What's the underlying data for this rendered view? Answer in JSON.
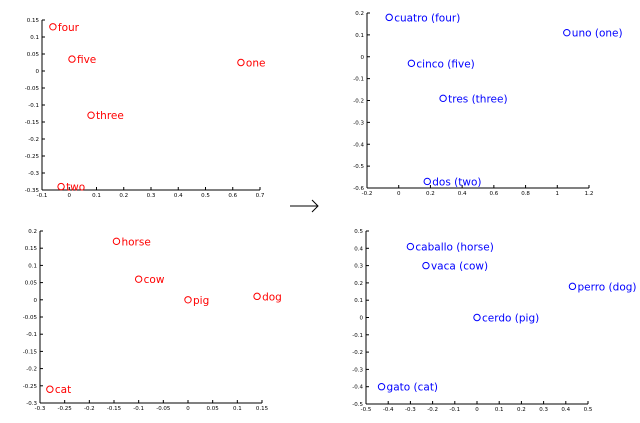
{
  "chart_data": [
    {
      "type": "scatter",
      "color": "#ff0000",
      "xlim": [
        -0.1,
        0.7
      ],
      "ylim": [
        -0.35,
        0.15
      ],
      "xticks": [
        -0.1,
        0,
        0.1,
        0.2,
        0.3,
        0.4,
        0.5,
        0.6,
        0.7
      ],
      "yticks": [
        -0.35,
        -0.3,
        -0.25,
        -0.2,
        -0.15,
        -0.1,
        -0.05,
        0,
        0.05,
        0.1,
        0.15
      ],
      "xtick_labels": [
        "-0.1",
        "0",
        "0.1",
        "0.2",
        "0.3",
        "0.4",
        "0.5",
        "0.6",
        "0.7"
      ],
      "ytick_labels": [
        "-0.35",
        "-0.3",
        "-0.25",
        "-0.2",
        "-0.15",
        "-0.1",
        "-0.05",
        "0",
        "0.05",
        "0.1",
        "0.15"
      ],
      "points": [
        {
          "label": "four",
          "x": -0.06,
          "y": 0.13
        },
        {
          "label": "five",
          "x": 0.01,
          "y": 0.035
        },
        {
          "label": "one",
          "x": 0.63,
          "y": 0.025
        },
        {
          "label": "three",
          "x": 0.08,
          "y": -0.13
        },
        {
          "label": "two",
          "x": -0.03,
          "y": -0.34
        }
      ]
    },
    {
      "type": "scatter",
      "color": "#0000ff",
      "xlim": [
        -0.2,
        1.2
      ],
      "ylim": [
        -0.6,
        0.2
      ],
      "xticks": [
        -0.2,
        0,
        0.2,
        0.4,
        0.6,
        0.8,
        1,
        1.2
      ],
      "yticks": [
        -0.6,
        -0.5,
        -0.4,
        -0.3,
        -0.2,
        -0.1,
        0,
        0.1,
        0.2
      ],
      "xtick_labels": [
        "-0.2",
        "0",
        "0.2",
        "0.4",
        "0.6",
        "0.8",
        "1",
        "1.2"
      ],
      "ytick_labels": [
        "-0.6",
        "-0.5",
        "-0.4",
        "-0.3",
        "-0.2",
        "-0.1",
        "0",
        "0.1",
        "0.2"
      ],
      "points": [
        {
          "label": "cuatro (four)",
          "x": -0.06,
          "y": 0.18
        },
        {
          "label": "uno (one)",
          "x": 1.06,
          "y": 0.11
        },
        {
          "label": "cinco (five)",
          "x": 0.08,
          "y": -0.03
        },
        {
          "label": "tres (three)",
          "x": 0.28,
          "y": -0.19
        },
        {
          "label": "dos (two)",
          "x": 0.18,
          "y": -0.57
        }
      ]
    },
    {
      "type": "scatter",
      "color": "#ff0000",
      "xlim": [
        -0.3,
        0.15
      ],
      "ylim": [
        -0.3,
        0.2
      ],
      "xticks": [
        -0.3,
        -0.25,
        -0.2,
        -0.15,
        -0.1,
        -0.05,
        0,
        0.05,
        0.1,
        0.15
      ],
      "yticks": [
        -0.3,
        -0.25,
        -0.2,
        -0.15,
        -0.1,
        -0.05,
        0,
        0.05,
        0.1,
        0.15,
        0.2
      ],
      "xtick_labels": [
        "-0.3",
        "-0.25",
        "-0.2",
        "-0.15",
        "-0.1",
        "-0.05",
        "0",
        "0.05",
        "0.1",
        "0.15"
      ],
      "ytick_labels": [
        "-0.3",
        "-0.25",
        "-0.2",
        "-0.15",
        "-0.1",
        "-0.05",
        "0",
        "0.05",
        "0.1",
        "0.15",
        "0.2"
      ],
      "points": [
        {
          "label": "horse",
          "x": -0.145,
          "y": 0.17
        },
        {
          "label": "cow",
          "x": -0.1,
          "y": 0.06
        },
        {
          "label": "pig",
          "x": 0.0,
          "y": 0.0
        },
        {
          "label": "dog",
          "x": 0.14,
          "y": 0.01
        },
        {
          "label": "cat",
          "x": -0.28,
          "y": -0.26
        }
      ]
    },
    {
      "type": "scatter",
      "color": "#0000ff",
      "xlim": [
        -0.5,
        0.5
      ],
      "ylim": [
        -0.5,
        0.5
      ],
      "xticks": [
        -0.5,
        -0.4,
        -0.3,
        -0.2,
        -0.1,
        0,
        0.1,
        0.2,
        0.3,
        0.4,
        0.5
      ],
      "yticks": [
        -0.5,
        -0.4,
        -0.3,
        -0.2,
        -0.1,
        0,
        0.1,
        0.2,
        0.3,
        0.4,
        0.5
      ],
      "xtick_labels": [
        "-0.5",
        "-0.4",
        "-0.3",
        "-0.2",
        "-0.1",
        "0",
        "0.1",
        "0.2",
        "0.3",
        "0.4",
        "0.5"
      ],
      "ytick_labels": [
        "-0.5",
        "-0.4",
        "-0.3",
        "-0.2",
        "-0.1",
        "0",
        "0.1",
        "0.2",
        "0.3",
        "0.4",
        "0.5"
      ],
      "points": [
        {
          "label": "caballo (horse)",
          "x": -0.3,
          "y": 0.41
        },
        {
          "label": "vaca (cow)",
          "x": -0.23,
          "y": 0.3
        },
        {
          "label": "perro (dog)",
          "x": 0.43,
          "y": 0.18
        },
        {
          "label": "cerdo (pig)",
          "x": 0.0,
          "y": 0.0
        },
        {
          "label": "gato (cat)",
          "x": -0.43,
          "y": -0.4
        }
      ]
    }
  ],
  "arrow": "→"
}
